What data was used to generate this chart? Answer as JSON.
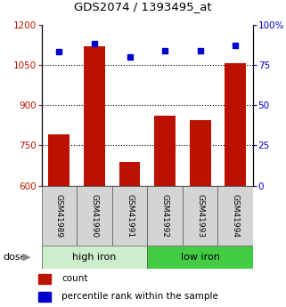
{
  "title": "GDS2074 / 1393495_at",
  "samples": [
    "GSM41989",
    "GSM41990",
    "GSM41991",
    "GSM41992",
    "GSM41993",
    "GSM41994"
  ],
  "bar_values": [
    790,
    1120,
    690,
    860,
    845,
    1055
  ],
  "percentile_values": [
    83,
    88,
    80,
    84,
    84,
    87
  ],
  "bar_color": "#bb1100",
  "dot_color": "#0000cc",
  "left_ylim": [
    600,
    1200
  ],
  "left_yticks": [
    600,
    750,
    900,
    1050,
    1200
  ],
  "right_ylim": [
    0,
    100
  ],
  "right_yticks": [
    0,
    25,
    50,
    75,
    100
  ],
  "right_yticklabels": [
    "0",
    "25",
    "50",
    "75",
    "100%"
  ],
  "grid_values": [
    750,
    900,
    1050
  ],
  "group1_label": "high iron",
  "group2_label": "low iron",
  "group1_color": "#cceecc",
  "group2_color": "#44cc44",
  "dose_label": "dose",
  "legend_count": "count",
  "legend_percentile": "percentile rank within the sample",
  "bar_width": 0.6,
  "figsize": [
    3.21,
    3.45
  ],
  "dpi": 100
}
